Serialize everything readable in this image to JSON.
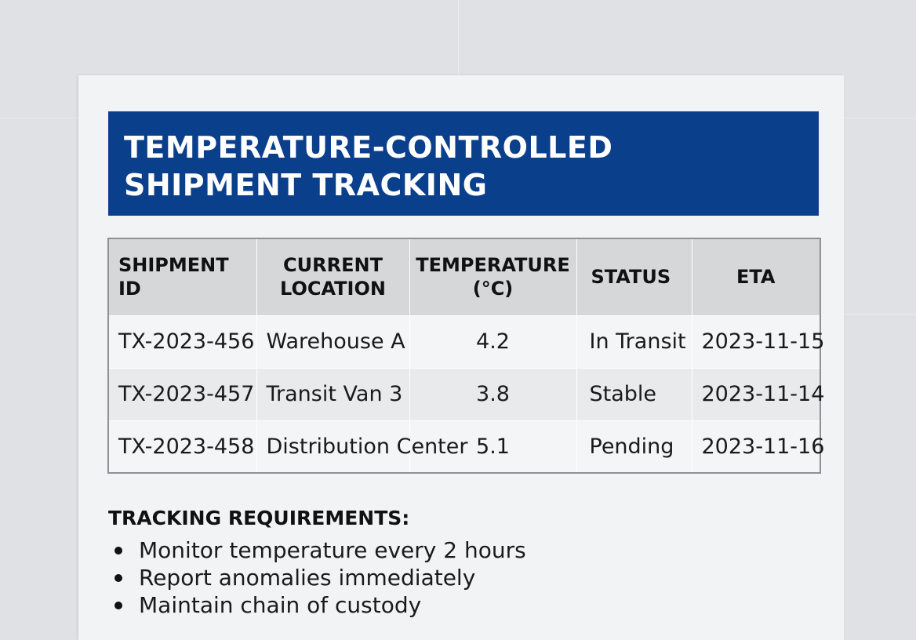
{
  "document": {
    "title_lines": [
      "TEMPERATURE-CONTROLLED",
      "SHIPMENT TRACKING"
    ],
    "banner_color": "#0a3f8c"
  },
  "table": {
    "headers": {
      "shipment_id": "SHIPMENT ID",
      "location_line1": "CURRENT",
      "location_line2": "LOCATION",
      "temperature_line1": "TEMPERATURE",
      "temperature_line2": "(°C)",
      "status": "STATUS",
      "eta": "ETA"
    },
    "rows": [
      {
        "shipment_id": "TX-2023-456",
        "location": "Warehouse A",
        "temperature": "4.2",
        "status": "In Transit",
        "eta": "2023-11-15"
      },
      {
        "shipment_id": "TX-2023-457",
        "location": "Transit Van 3",
        "temperature": "3.8",
        "status": "Stable",
        "eta": "2023-11-14"
      },
      {
        "shipment_id": "TX-2023-458",
        "location": "Distribution Center",
        "temperature": "5.1",
        "status": "Pending",
        "eta": "2023-11-16"
      }
    ]
  },
  "requirements": {
    "heading": "TRACKING REQUIREMENTS:",
    "items": [
      "Monitor temperature every 2 hours",
      "Report anomalies immediately",
      "Maintain chain of custody"
    ]
  }
}
